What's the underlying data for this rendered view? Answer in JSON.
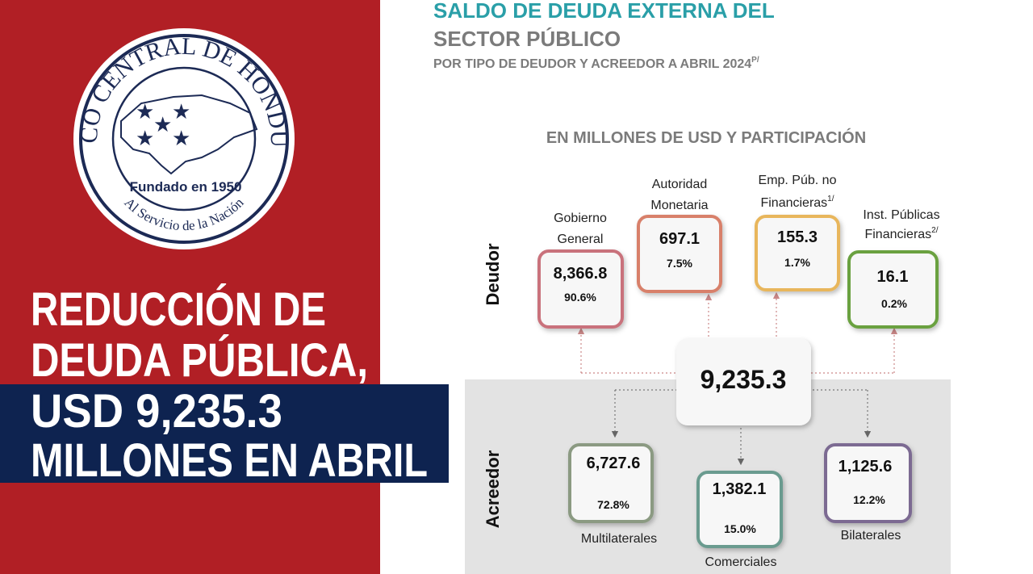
{
  "logo": {
    "top": "BANCO CENTRAL DE HONDURAS",
    "center": "Fundado en 1950",
    "bottom": "Al Servicio de la Nación"
  },
  "headline": [
    "REDUCCIÓN DE",
    "DEUDA PÚBLICA,",
    "USD 9,235.3",
    "MILLONES EN ABRIL"
  ],
  "infographic": {
    "title": [
      "SALDO DE DEUDA EXTERNA DEL",
      "SECTOR PÚBLICO"
    ],
    "subtitle": {
      "text": "POR TIPO DE DEUDOR Y ACREEDOR A ABRIL 2024",
      "note": "P/"
    },
    "units": "EN MILLONES DE USD Y PARTICIPACIÓN",
    "total": "9,235.3",
    "deudor": {
      "label": "Deudor",
      "items": [
        {
          "label": [
            "Gobierno",
            "General"
          ],
          "value": "8,366.8",
          "share": "90.6%"
        },
        {
          "label": [
            "Autoridad",
            "Monetaria"
          ],
          "value": "697.1",
          "share": "7.5%"
        },
        {
          "label": [
            "Emp. Púb. no",
            "Financieras"
          ],
          "note": "1/",
          "value": "155.3",
          "share": "1.7%"
        },
        {
          "label": [
            "Inst. Públicas",
            "Financieras"
          ],
          "note": "2/",
          "value": "16.1",
          "share": "0.2%"
        }
      ]
    },
    "acreedor": {
      "label": "Acreedor",
      "items": [
        {
          "label": "Multilaterales",
          "value": "6,727.6",
          "share": "72.8%"
        },
        {
          "label": "Comerciales",
          "value": "1,382.1",
          "share": "15.0%"
        },
        {
          "label": "Bilaterales",
          "value": "1,125.6",
          "share": "12.2%"
        }
      ]
    }
  }
}
